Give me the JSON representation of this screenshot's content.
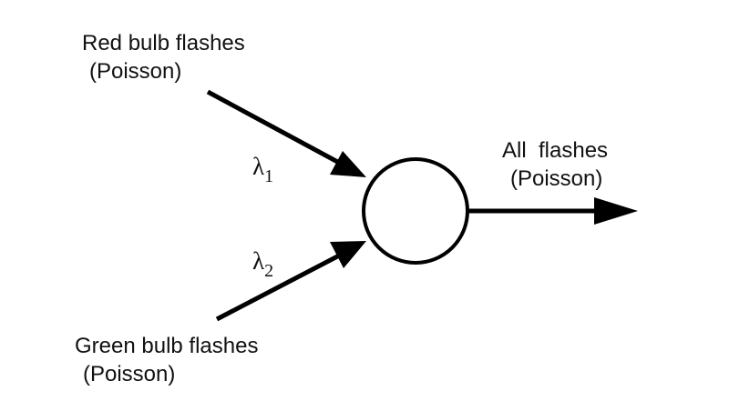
{
  "inputs": [
    {
      "title": "Red bulb flashes",
      "subtitle": "(Poisson)",
      "rate_symbol": "λ",
      "rate_subscript": "1"
    },
    {
      "title": "Green bulb flashes",
      "subtitle": "(Poisson)",
      "rate_symbol": "λ",
      "rate_subscript": "2"
    }
  ],
  "output": {
    "title": "All  flashes",
    "subtitle": "(Poisson)"
  },
  "colors": {
    "stroke": "#000000",
    "text": "#111111",
    "background": "#ffffff"
  }
}
